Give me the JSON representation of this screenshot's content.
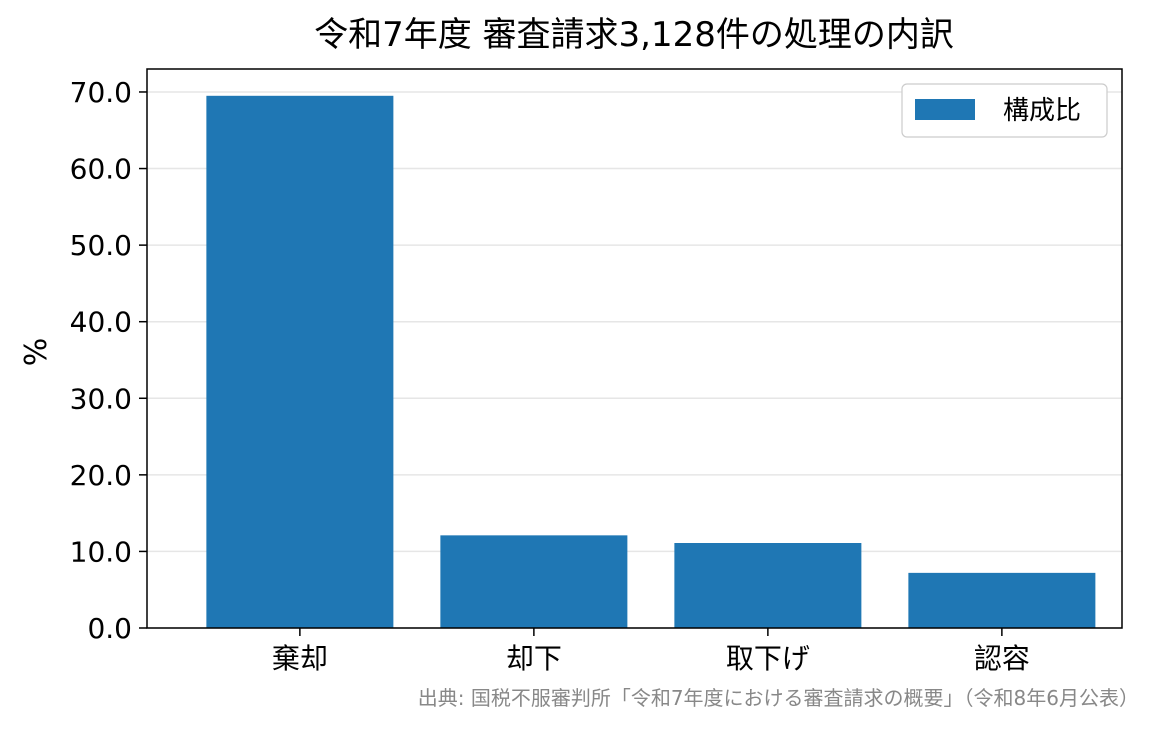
{
  "chart_data": {
    "type": "bar",
    "title": "令和7年度 審査請求3,128件の処理の内訳",
    "xlabel": "",
    "ylabel": "%",
    "categories": [
      "棄却",
      "却下",
      "取下げ",
      "認容"
    ],
    "series": [
      {
        "name": "構成比",
        "values": [
          69.5,
          12.1,
          11.1,
          7.2
        ]
      }
    ],
    "ylim": [
      0,
      73
    ],
    "yticks": [
      "0.0",
      "10.0",
      "20.0",
      "30.0",
      "40.0",
      "50.0",
      "60.0",
      "70.0"
    ],
    "ytick_values": [
      0,
      10,
      20,
      30,
      40,
      50,
      60,
      70
    ],
    "grid": "horizontal",
    "legend": "top-right",
    "bar_color": "#1f77b4",
    "grid_color": "#e6e6e6",
    "source": "出典: 国税不服審判所「令和7年度における審査請求の概要」（令和8年6月公表）"
  }
}
